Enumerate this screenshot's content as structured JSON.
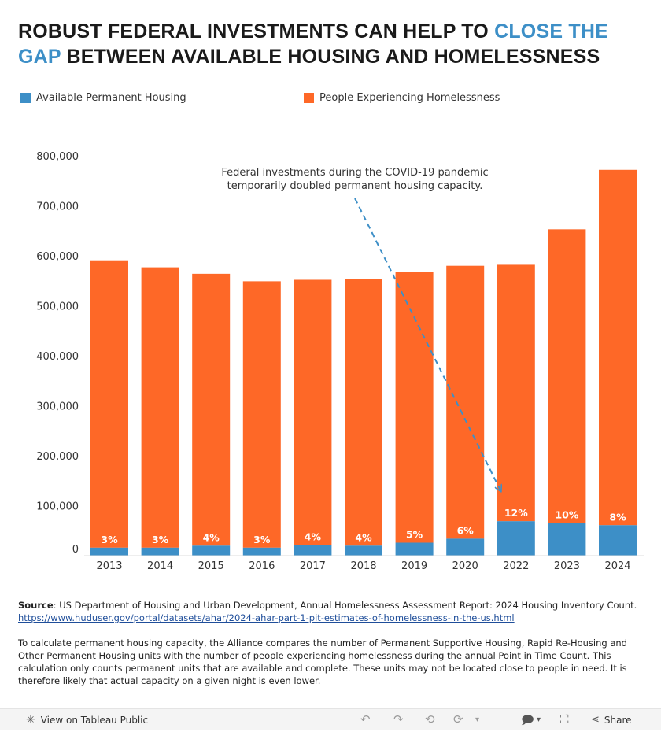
{
  "header": {
    "title_part1": "ROBUST FEDERAL INVESTMENTS CAN HELP TO ",
    "title_highlight": "CLOSE THE GAP",
    "title_part2": " BETWEEN AVAILABLE HOUSING AND HOMELESSNESS"
  },
  "colors": {
    "housing": "#3d8fc7",
    "homelessness": "#fe6827",
    "accent": "#3d8fc7",
    "axis_text": "#333333"
  },
  "chart_data": {
    "type": "bar",
    "stacked": true,
    "categories": [
      "2013",
      "2014",
      "2015",
      "2016",
      "2017",
      "2018",
      "2019",
      "2020",
      "2022",
      "2023",
      "2024"
    ],
    "series": [
      {
        "name": "Available Permanent Housing",
        "values": [
          16000,
          16000,
          20000,
          16000,
          21000,
          20000,
          26000,
          34000,
          69000,
          65000,
          61000
        ],
        "labels": [
          "3%",
          "3%",
          "4%",
          "3%",
          "4%",
          "4%",
          "5%",
          "6%",
          "12%",
          "10%",
          "8%"
        ]
      },
      {
        "name": "People Experiencing Homelessness",
        "values": [
          575000,
          561000,
          544000,
          533000,
          531000,
          533000,
          542000,
          546000,
          513000,
          588000,
          711000
        ]
      }
    ],
    "ylim": [
      0,
      800000
    ],
    "yticks": [
      0,
      100000,
      200000,
      300000,
      400000,
      500000,
      600000,
      700000,
      800000
    ],
    "ytick_labels": [
      "0",
      "100,000",
      "200,000",
      "300,000",
      "400,000",
      "500,000",
      "600,000",
      "700,000",
      "800,000"
    ],
    "grid": false,
    "legend_position": "top",
    "annotation": {
      "text_line1": "Federal investments during the COVID-19 pandemic",
      "text_line2": "temporarily doubled permanent housing capacity."
    }
  },
  "source": {
    "label": "Source",
    "text": ": US Department of Housing and Urban Development, Annual Homelessness Assessment Report: 2024 Housing Inventory Count. ",
    "link": "https://www.huduser.gov/portal/datasets/ahar/2024-ahar-part-1-pit-estimates-of-homelessness-in-the-us.html"
  },
  "note": "To calculate permanent housing capacity, the Alliance compares the number of Permanent Supportive Housing, Rapid Re-Housing and Other Permanent Housing units with the number of people experiencing homelessness during the annual Point in Time Count. This calculation only counts permanent units that are available and complete. These units may not be located close to people in need. It is therefore likely that actual capacity on a given night is even lower.",
  "footer": {
    "view_label": "View on Tableau Public",
    "share_label": "Share",
    "view_icon": "tableau-icon",
    "share_icon": "share-icon"
  }
}
